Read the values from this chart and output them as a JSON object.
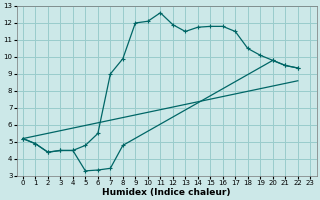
{
  "xlabel": "Humidex (Indice chaleur)",
  "bg_color": "#cce8e8",
  "grid_color": "#99cccc",
  "line_color": "#006666",
  "xlim": [
    -0.5,
    23.5
  ],
  "ylim": [
    3,
    13
  ],
  "xticks": [
    0,
    1,
    2,
    3,
    4,
    5,
    6,
    7,
    8,
    9,
    10,
    11,
    12,
    13,
    14,
    15,
    16,
    17,
    18,
    19,
    20,
    21,
    22,
    23
  ],
  "yticks": [
    3,
    4,
    5,
    6,
    7,
    8,
    9,
    10,
    11,
    12,
    13
  ],
  "line_peak": {
    "x": [
      0,
      1,
      2,
      3,
      4,
      5,
      6,
      7,
      8,
      9,
      10,
      11,
      12,
      13,
      14,
      15,
      16,
      17,
      18,
      19,
      20,
      21,
      22
    ],
    "y": [
      5.2,
      4.9,
      4.4,
      4.5,
      4.5,
      4.8,
      5.5,
      9.0,
      9.9,
      12.0,
      12.1,
      12.6,
      11.9,
      11.5,
      11.75,
      11.8,
      11.8,
      11.5,
      10.5,
      10.1,
      9.8,
      9.5,
      9.35
    ]
  },
  "line_dip": {
    "x": [
      0,
      1,
      2,
      3,
      4,
      5,
      6,
      7,
      8,
      20,
      21,
      22
    ],
    "y": [
      5.2,
      4.9,
      4.4,
      4.5,
      4.5,
      3.3,
      3.35,
      3.45,
      4.8,
      9.8,
      9.5,
      9.35
    ]
  },
  "line_straight": {
    "x": [
      0,
      22
    ],
    "y": [
      5.2,
      8.6
    ]
  }
}
